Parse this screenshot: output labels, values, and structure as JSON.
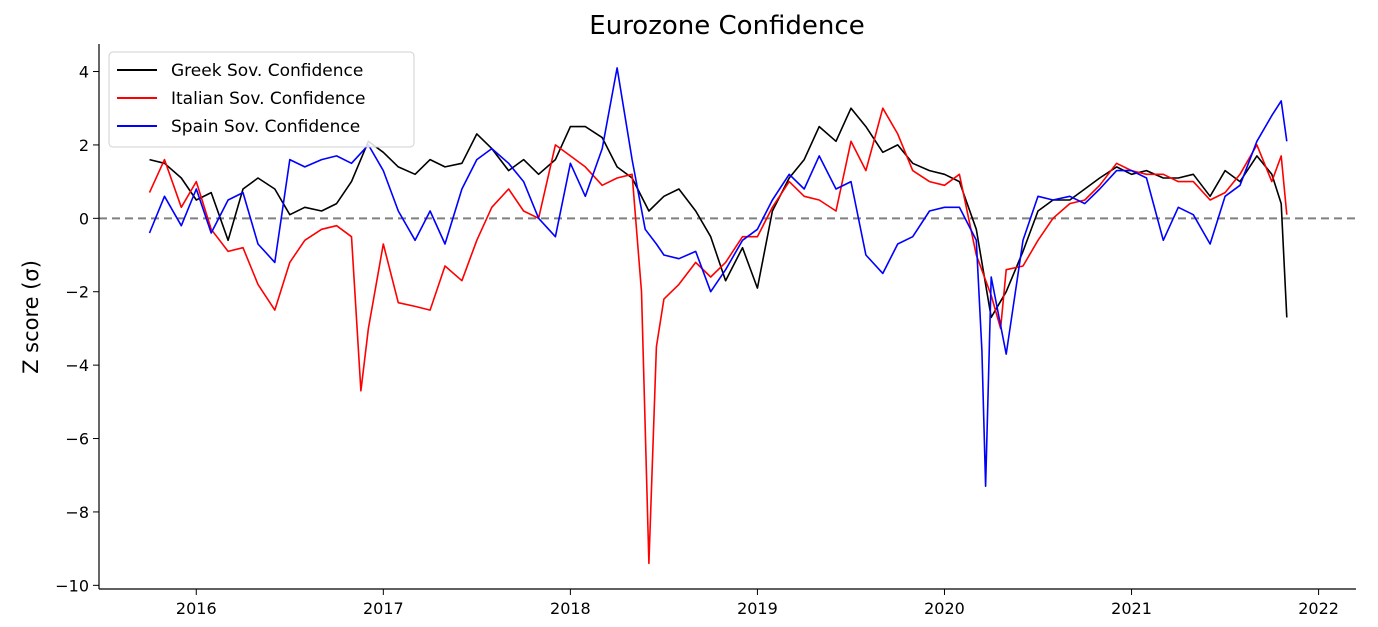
{
  "chart_data": {
    "type": "line",
    "title": "Eurozone Confidence",
    "xlabel": "",
    "ylabel": "Z score (σ)",
    "x_ticks": [
      2016,
      2017,
      2018,
      2019,
      2020,
      2021,
      2022
    ],
    "y_ticks": [
      4,
      2,
      0,
      -2,
      -4,
      -6,
      -8,
      -10
    ],
    "xlim": [
      2015.48,
      2022.2
    ],
    "ylim": [
      -10.1,
      4.75
    ],
    "grid": false,
    "reference_line": {
      "y": 0,
      "style": "dashed",
      "color": "#808080"
    },
    "legend_position": "top-left",
    "series": [
      {
        "name": "Greek Sov. Confidence",
        "color": "#000000",
        "points": [
          [
            2015.75,
            1.6
          ],
          [
            2015.83,
            1.5
          ],
          [
            2015.92,
            1.1
          ],
          [
            2016.0,
            0.5
          ],
          [
            2016.08,
            0.7
          ],
          [
            2016.17,
            -0.6
          ],
          [
            2016.25,
            0.8
          ],
          [
            2016.33,
            1.1
          ],
          [
            2016.42,
            0.8
          ],
          [
            2016.5,
            0.1
          ],
          [
            2016.58,
            0.3
          ],
          [
            2016.67,
            0.2
          ],
          [
            2016.75,
            0.4
          ],
          [
            2016.83,
            1.0
          ],
          [
            2016.92,
            2.1
          ],
          [
            2017.0,
            1.8
          ],
          [
            2017.08,
            1.4
          ],
          [
            2017.17,
            1.2
          ],
          [
            2017.25,
            1.6
          ],
          [
            2017.33,
            1.4
          ],
          [
            2017.42,
            1.5
          ],
          [
            2017.5,
            2.3
          ],
          [
            2017.58,
            1.9
          ],
          [
            2017.67,
            1.3
          ],
          [
            2017.75,
            1.6
          ],
          [
            2017.83,
            1.2
          ],
          [
            2017.92,
            1.6
          ],
          [
            2018.0,
            2.5
          ],
          [
            2018.08,
            2.5
          ],
          [
            2018.17,
            2.2
          ],
          [
            2018.25,
            1.4
          ],
          [
            2018.33,
            1.1
          ],
          [
            2018.42,
            0.2
          ],
          [
            2018.5,
            0.6
          ],
          [
            2018.58,
            0.8
          ],
          [
            2018.67,
            0.2
          ],
          [
            2018.75,
            -0.5
          ],
          [
            2018.83,
            -1.7
          ],
          [
            2018.92,
            -0.8
          ],
          [
            2019.0,
            -1.9
          ],
          [
            2019.08,
            0.2
          ],
          [
            2019.17,
            1.1
          ],
          [
            2019.25,
            1.6
          ],
          [
            2019.33,
            2.5
          ],
          [
            2019.42,
            2.1
          ],
          [
            2019.5,
            3.0
          ],
          [
            2019.58,
            2.5
          ],
          [
            2019.67,
            1.8
          ],
          [
            2019.75,
            2.0
          ],
          [
            2019.83,
            1.5
          ],
          [
            2019.92,
            1.3
          ],
          [
            2020.0,
            1.2
          ],
          [
            2020.08,
            1.0
          ],
          [
            2020.17,
            -0.3
          ],
          [
            2020.25,
            -2.7
          ],
          [
            2020.33,
            -2.0
          ],
          [
            2020.42,
            -0.9
          ],
          [
            2020.5,
            0.2
          ],
          [
            2020.58,
            0.5
          ],
          [
            2020.67,
            0.5
          ],
          [
            2020.75,
            0.8
          ],
          [
            2020.83,
            1.1
          ],
          [
            2020.92,
            1.4
          ],
          [
            2021.0,
            1.2
          ],
          [
            2021.08,
            1.3
          ],
          [
            2021.17,
            1.1
          ],
          [
            2021.25,
            1.1
          ],
          [
            2021.33,
            1.2
          ],
          [
            2021.42,
            0.6
          ],
          [
            2021.5,
            1.3
          ],
          [
            2021.58,
            1.0
          ],
          [
            2021.67,
            1.7
          ],
          [
            2021.75,
            1.2
          ],
          [
            2021.8,
            0.4
          ],
          [
            2021.83,
            -2.7
          ]
        ]
      },
      {
        "name": "Italian Sov. Confidence",
        "color": "#ff0000",
        "points": [
          [
            2015.75,
            0.7
          ],
          [
            2015.83,
            1.6
          ],
          [
            2015.92,
            0.3
          ],
          [
            2016.0,
            1.0
          ],
          [
            2016.08,
            -0.3
          ],
          [
            2016.17,
            -0.9
          ],
          [
            2016.25,
            -0.8
          ],
          [
            2016.33,
            -1.8
          ],
          [
            2016.42,
            -2.5
          ],
          [
            2016.5,
            -1.2
          ],
          [
            2016.58,
            -0.6
          ],
          [
            2016.67,
            -0.3
          ],
          [
            2016.75,
            -0.2
          ],
          [
            2016.83,
            -0.5
          ],
          [
            2016.88,
            -4.7
          ],
          [
            2016.92,
            -3.0
          ],
          [
            2017.0,
            -0.7
          ],
          [
            2017.08,
            -2.3
          ],
          [
            2017.17,
            -2.4
          ],
          [
            2017.25,
            -2.5
          ],
          [
            2017.33,
            -1.3
          ],
          [
            2017.42,
            -1.7
          ],
          [
            2017.5,
            -0.6
          ],
          [
            2017.58,
            0.3
          ],
          [
            2017.67,
            0.8
          ],
          [
            2017.75,
            0.2
          ],
          [
            2017.83,
            0.0
          ],
          [
            2017.92,
            2.0
          ],
          [
            2018.0,
            1.7
          ],
          [
            2018.08,
            1.4
          ],
          [
            2018.17,
            0.9
          ],
          [
            2018.25,
            1.1
          ],
          [
            2018.33,
            1.2
          ],
          [
            2018.38,
            -2.0
          ],
          [
            2018.42,
            -9.4
          ],
          [
            2018.46,
            -3.5
          ],
          [
            2018.5,
            -2.2
          ],
          [
            2018.58,
            -1.8
          ],
          [
            2018.67,
            -1.2
          ],
          [
            2018.75,
            -1.6
          ],
          [
            2018.83,
            -1.2
          ],
          [
            2018.92,
            -0.5
          ],
          [
            2019.0,
            -0.5
          ],
          [
            2019.08,
            0.3
          ],
          [
            2019.17,
            1.0
          ],
          [
            2019.25,
            0.6
          ],
          [
            2019.33,
            0.5
          ],
          [
            2019.42,
            0.2
          ],
          [
            2019.5,
            2.1
          ],
          [
            2019.58,
            1.3
          ],
          [
            2019.67,
            3.0
          ],
          [
            2019.75,
            2.3
          ],
          [
            2019.83,
            1.3
          ],
          [
            2019.92,
            1.0
          ],
          [
            2020.0,
            0.9
          ],
          [
            2020.08,
            1.2
          ],
          [
            2020.17,
            -1.0
          ],
          [
            2020.25,
            -2.1
          ],
          [
            2020.3,
            -3.0
          ],
          [
            2020.33,
            -1.4
          ],
          [
            2020.42,
            -1.3
          ],
          [
            2020.5,
            -0.6
          ],
          [
            2020.58,
            0.0
          ],
          [
            2020.67,
            0.4
          ],
          [
            2020.75,
            0.5
          ],
          [
            2020.83,
            0.9
          ],
          [
            2020.92,
            1.5
          ],
          [
            2021.0,
            1.3
          ],
          [
            2021.08,
            1.2
          ],
          [
            2021.17,
            1.2
          ],
          [
            2021.25,
            1.0
          ],
          [
            2021.33,
            1.0
          ],
          [
            2021.42,
            0.5
          ],
          [
            2021.5,
            0.7
          ],
          [
            2021.58,
            1.2
          ],
          [
            2021.67,
            2.0
          ],
          [
            2021.75,
            1.0
          ],
          [
            2021.8,
            1.7
          ],
          [
            2021.83,
            0.1
          ]
        ]
      },
      {
        "name": "Spain Sov. Confidence",
        "color": "#0000ff",
        "points": [
          [
            2015.75,
            -0.4
          ],
          [
            2015.83,
            0.6
          ],
          [
            2015.92,
            -0.2
          ],
          [
            2016.0,
            0.8
          ],
          [
            2016.08,
            -0.4
          ],
          [
            2016.17,
            0.5
          ],
          [
            2016.25,
            0.7
          ],
          [
            2016.33,
            -0.7
          ],
          [
            2016.42,
            -1.2
          ],
          [
            2016.5,
            1.6
          ],
          [
            2016.58,
            1.4
          ],
          [
            2016.67,
            1.6
          ],
          [
            2016.75,
            1.7
          ],
          [
            2016.83,
            1.5
          ],
          [
            2016.92,
            2.0
          ],
          [
            2017.0,
            1.3
          ],
          [
            2017.08,
            0.2
          ],
          [
            2017.17,
            -0.6
          ],
          [
            2017.25,
            0.2
          ],
          [
            2017.33,
            -0.7
          ],
          [
            2017.42,
            0.8
          ],
          [
            2017.5,
            1.6
          ],
          [
            2017.58,
            1.9
          ],
          [
            2017.67,
            1.5
          ],
          [
            2017.75,
            1.0
          ],
          [
            2017.83,
            0.0
          ],
          [
            2017.92,
            -0.5
          ],
          [
            2018.0,
            1.5
          ],
          [
            2018.08,
            0.6
          ],
          [
            2018.17,
            1.9
          ],
          [
            2018.25,
            4.1
          ],
          [
            2018.33,
            1.6
          ],
          [
            2018.4,
            -0.3
          ],
          [
            2018.46,
            -0.7
          ],
          [
            2018.5,
            -1.0
          ],
          [
            2018.58,
            -1.1
          ],
          [
            2018.67,
            -0.9
          ],
          [
            2018.75,
            -2.0
          ],
          [
            2018.83,
            -1.4
          ],
          [
            2018.92,
            -0.6
          ],
          [
            2019.0,
            -0.3
          ],
          [
            2019.08,
            0.5
          ],
          [
            2019.17,
            1.2
          ],
          [
            2019.25,
            0.8
          ],
          [
            2019.33,
            1.7
          ],
          [
            2019.42,
            0.8
          ],
          [
            2019.5,
            1.0
          ],
          [
            2019.58,
            -1.0
          ],
          [
            2019.67,
            -1.5
          ],
          [
            2019.75,
            -0.7
          ],
          [
            2019.83,
            -0.5
          ],
          [
            2019.92,
            0.2
          ],
          [
            2020.0,
            0.3
          ],
          [
            2020.08,
            0.3
          ],
          [
            2020.17,
            -0.6
          ],
          [
            2020.2,
            -3.6
          ],
          [
            2020.22,
            -7.3
          ],
          [
            2020.25,
            -1.6
          ],
          [
            2020.33,
            -3.7
          ],
          [
            2020.42,
            -0.6
          ],
          [
            2020.5,
            0.6
          ],
          [
            2020.58,
            0.5
          ],
          [
            2020.67,
            0.6
          ],
          [
            2020.75,
            0.4
          ],
          [
            2020.83,
            0.8
          ],
          [
            2020.92,
            1.3
          ],
          [
            2021.0,
            1.3
          ],
          [
            2021.08,
            1.1
          ],
          [
            2021.17,
            -0.6
          ],
          [
            2021.25,
            0.3
          ],
          [
            2021.33,
            0.1
          ],
          [
            2021.42,
            -0.7
          ],
          [
            2021.5,
            0.6
          ],
          [
            2021.58,
            0.9
          ],
          [
            2021.67,
            2.1
          ],
          [
            2021.75,
            2.8
          ],
          [
            2021.8,
            3.2
          ],
          [
            2021.83,
            2.1
          ]
        ]
      }
    ]
  }
}
